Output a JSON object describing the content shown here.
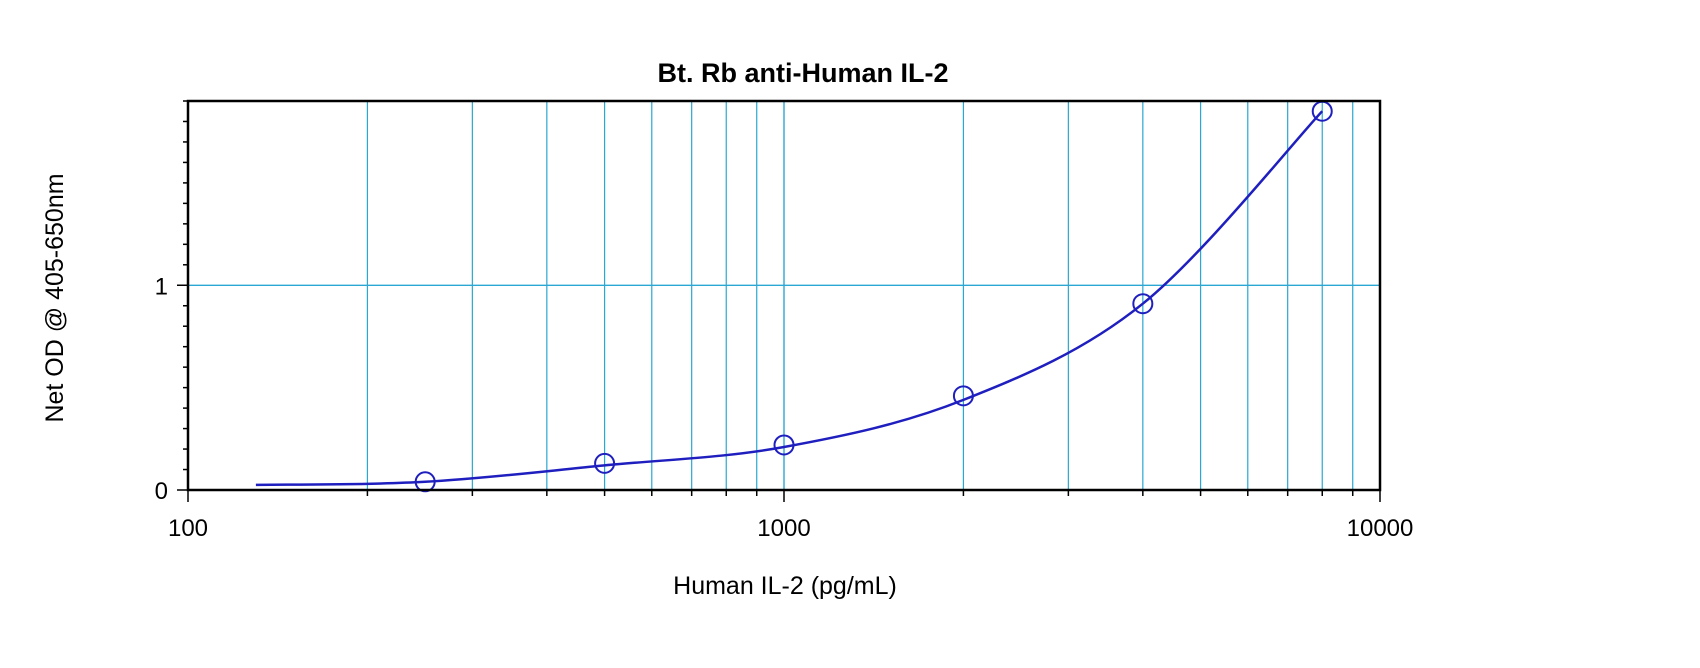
{
  "chart_data": {
    "type": "scatter",
    "title": "Bt. Rb anti-Human IL-2",
    "xlabel": "Human IL-2 (pg/mL)",
    "ylabel": "Net OD @ 405-650nm",
    "x_scale": "log",
    "xlim": [
      100,
      10000
    ],
    "ylim": [
      0,
      1.9
    ],
    "x_ticks": [
      {
        "value": 100,
        "label": "100"
      },
      {
        "value": 1000,
        "label": "1000"
      },
      {
        "value": 10000,
        "label": "10000"
      }
    ],
    "y_ticks": [
      {
        "value": 0,
        "label": "0"
      },
      {
        "value": 1,
        "label": "1"
      }
    ],
    "grid": true,
    "series": [
      {
        "marker": "open-circle",
        "x": [
          250,
          500,
          1000,
          2000,
          4000,
          8000
        ],
        "y": [
          0.04,
          0.13,
          0.22,
          0.46,
          0.91,
          1.85
        ]
      },
      {
        "style": "fitted-curve",
        "x": [
          130,
          250,
          500,
          1000,
          2000,
          4000,
          8000
        ],
        "y": [
          0.025,
          0.04,
          0.12,
          0.21,
          0.44,
          0.91,
          1.85
        ]
      }
    ],
    "colors": {
      "series": "#1f1fbf",
      "grid": "#2aa7d2",
      "axes": "#000000"
    }
  }
}
